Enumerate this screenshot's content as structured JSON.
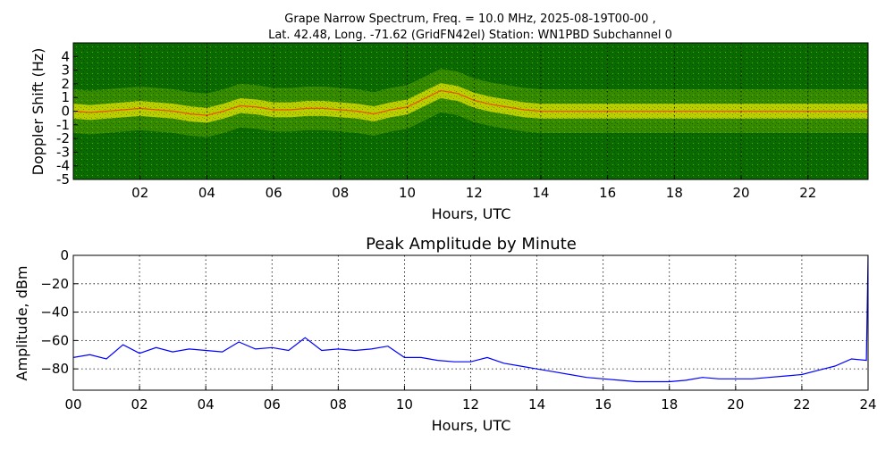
{
  "chart_data": [
    {
      "type": "heatmap",
      "title_line1": "Grape Narrow Spectrum, Freq. = 10.0 MHz, 2025-08-19T00-00 ,",
      "title_line2": "Lat.  42.48, Long. -71.62 (GridFN42el) Station: WN1PBD Subchannel 0",
      "xlabel": "Hours, UTC",
      "ylabel": "Doppler Shift (Hz)",
      "xlim": [
        0,
        23.8
      ],
      "ylim": [
        -5,
        5
      ],
      "x_ticks": [
        2,
        4,
        6,
        8,
        10,
        12,
        14,
        16,
        18,
        20,
        22
      ],
      "x_tick_labels": [
        "02",
        "04",
        "06",
        "08",
        "10",
        "12",
        "14",
        "16",
        "18",
        "20",
        "22"
      ],
      "y_ticks": [
        4,
        3,
        2,
        1,
        0,
        -1,
        -2,
        -3,
        -4,
        -5
      ],
      "y_tick_labels": [
        "4",
        "3",
        "2",
        "1",
        "0",
        "-1",
        "-2",
        "-3",
        "-4",
        "-5"
      ],
      "colors": {
        "background": "#0a6b00",
        "mid": "#5aa500",
        "high": "#e6e600",
        "peak": "#ff3300"
      },
      "trace_hours": [
        0,
        0.5,
        1,
        1.5,
        2,
        2.5,
        3,
        3.5,
        4,
        4.5,
        5,
        5.5,
        6,
        6.5,
        7,
        7.5,
        8,
        8.5,
        9,
        9.5,
        10,
        10.5,
        11,
        11.5,
        12,
        12.5,
        13,
        13.5,
        14,
        15,
        16,
        17,
        18,
        19,
        20,
        21,
        22,
        23,
        23.8
      ],
      "trace_doppler_hz": [
        0.0,
        -0.1,
        0.0,
        0.1,
        0.2,
        0.1,
        0.0,
        -0.2,
        -0.3,
        0.0,
        0.4,
        0.3,
        0.1,
        0.1,
        0.2,
        0.2,
        0.1,
        0.0,
        -0.2,
        0.1,
        0.3,
        0.9,
        1.5,
        1.3,
        0.8,
        0.5,
        0.3,
        0.1,
        0.0,
        0.0,
        0.0,
        0.0,
        0.0,
        0.0,
        0.0,
        0.0,
        0.0,
        0.0,
        0.0
      ]
    },
    {
      "type": "line",
      "title": "Peak Amplitude by Minute",
      "xlabel": "Hours, UTC",
      "ylabel": "Amplitude, dBm",
      "xlim": [
        0,
        24
      ],
      "ylim": [
        -95,
        0
      ],
      "x_ticks": [
        0,
        2,
        4,
        6,
        8,
        10,
        12,
        14,
        16,
        18,
        20,
        22,
        24
      ],
      "x_tick_labels": [
        "00",
        "02",
        "04",
        "06",
        "08",
        "10",
        "12",
        "14",
        "16",
        "18",
        "20",
        "22",
        "24"
      ],
      "y_ticks": [
        0,
        -20,
        -40,
        -60,
        -80
      ],
      "y_tick_labels": [
        "0",
        "−20",
        "−40",
        "−60",
        "−80"
      ],
      "line_color": "#0000ff",
      "x": [
        0,
        0.5,
        1,
        1.5,
        2,
        2.5,
        3,
        3.5,
        4,
        4.5,
        5,
        5.5,
        6,
        6.5,
        7,
        7.5,
        8,
        8.5,
        9,
        9.5,
        10,
        10.5,
        11,
        11.5,
        12,
        12.5,
        13,
        13.5,
        14,
        14.5,
        15,
        15.5,
        16,
        16.5,
        17,
        17.5,
        18,
        18.5,
        19,
        19.5,
        20,
        20.5,
        21,
        21.5,
        22,
        22.5,
        23,
        23.5,
        23.95,
        24
      ],
      "y": [
        -72,
        -70,
        -73,
        -63,
        -69,
        -65,
        -68,
        -66,
        -67,
        -68,
        -61,
        -66,
        -65,
        -67,
        -58,
        -67,
        -66,
        -67,
        -66,
        -64,
        -72,
        -72,
        -74,
        -75,
        -75,
        -72,
        -76,
        -78,
        -80,
        -82,
        -84,
        -86,
        -87,
        -88,
        -89,
        -89,
        -89,
        -88,
        -86,
        -87,
        -87,
        -87,
        -86,
        -85,
        -84,
        -81,
        -78,
        -73,
        -74,
        0
      ]
    }
  ]
}
